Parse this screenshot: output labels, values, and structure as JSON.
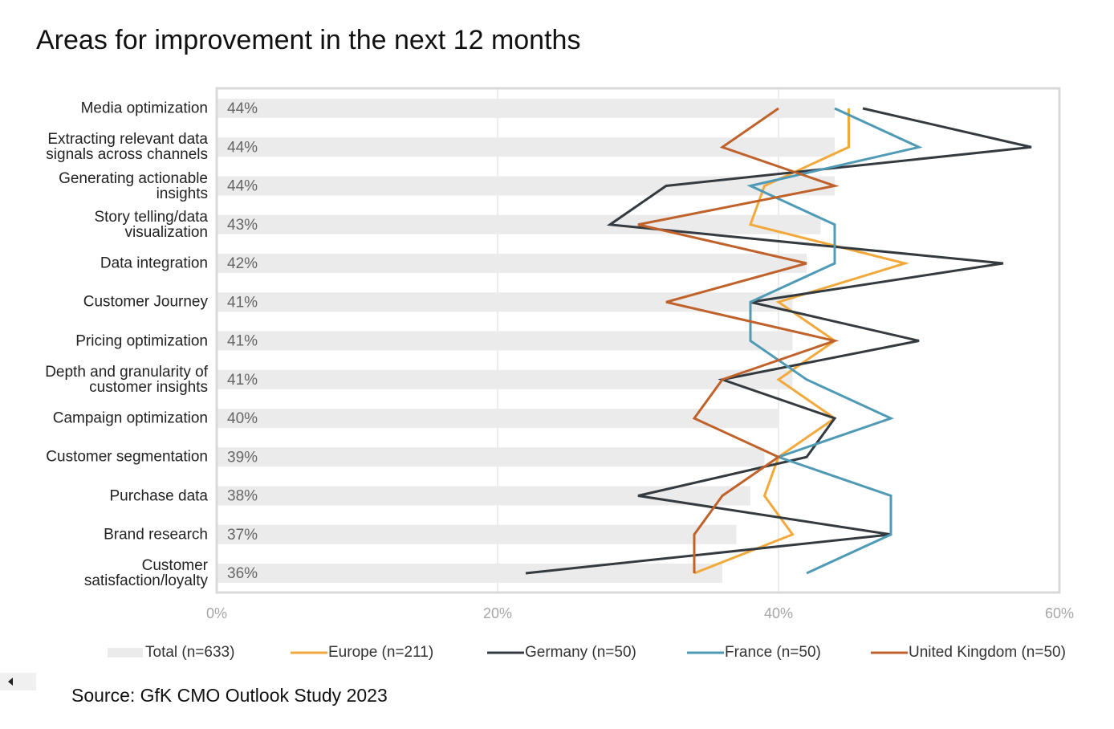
{
  "chart_data": {
    "type": "bar",
    "title": "Areas for improvement in the next 12 months",
    "source": "Source: GfK CMO Outlook Study 2023",
    "orientation": "horizontal",
    "categories": [
      "Media optimization",
      "Extracting relevant data\nsignals across channels",
      "Generating actionable\ninsights",
      "Story telling/data\nvisualization",
      "Data integration",
      "Customer Journey",
      "Pricing optimization",
      "Depth and granularity of\ncustomer insights",
      "Campaign optimization",
      "Customer segmentation",
      "Purchase data",
      "Brand research",
      "Customer\nsatisfaction/loyalty"
    ],
    "series": [
      {
        "name": "Total (n=633)",
        "type": "bar",
        "color": "#ebebeb",
        "values": [
          44,
          44,
          44,
          43,
          42,
          41,
          41,
          41,
          40,
          39,
          38,
          37,
          36
        ],
        "value_labels": [
          "44%",
          "44%",
          "44%",
          "43%",
          "42%",
          "41%",
          "41%",
          "41%",
          "40%",
          "39%",
          "38%",
          "37%",
          "36%"
        ]
      },
      {
        "name": "Europe (n=211)",
        "type": "line",
        "color": "#f2a93b",
        "values": [
          45,
          45,
          39,
          38,
          49,
          40,
          44,
          40,
          44,
          40,
          39,
          41,
          34
        ]
      },
      {
        "name": "Germany (n=50)",
        "type": "line",
        "color": "#333a40",
        "values": [
          46,
          58,
          32,
          28,
          56,
          38,
          50,
          36,
          44,
          42,
          30,
          48,
          22
        ]
      },
      {
        "name": "France (n=50)",
        "type": "line",
        "color": "#4f9ab5",
        "values": [
          44,
          50,
          38,
          44,
          44,
          38,
          38,
          42,
          48,
          40,
          48,
          48,
          42
        ]
      },
      {
        "name": "United Kingdom (n=50)",
        "type": "line",
        "color": "#c0622b",
        "values": [
          40,
          36,
          44,
          30,
          42,
          32,
          44,
          36,
          34,
          40,
          36,
          34,
          34
        ]
      }
    ],
    "xlim": [
      0,
      60
    ],
    "xticks": [
      {
        "value": 0,
        "label": "0%"
      },
      {
        "value": 20,
        "label": "20%"
      },
      {
        "value": 40,
        "label": "40%"
      },
      {
        "value": 60,
        "label": "60%"
      }
    ],
    "grid": true,
    "legend": "bottom"
  }
}
